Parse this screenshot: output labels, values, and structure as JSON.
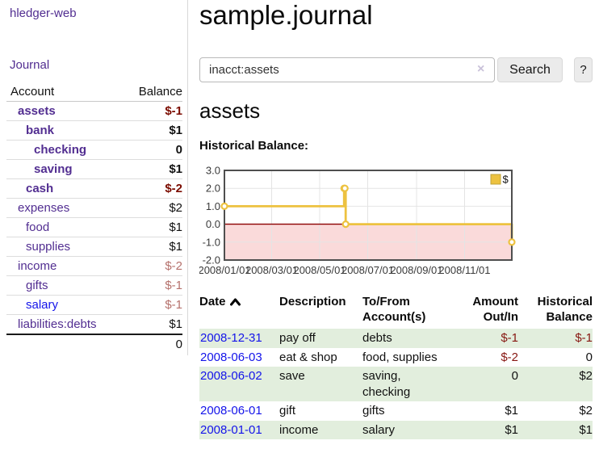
{
  "app": {
    "brand": "hledger-web"
  },
  "sidebar": {
    "journal_link": "Journal",
    "accounts": {
      "headers": {
        "account": "Account",
        "balance": "Balance"
      },
      "rows": [
        {
          "name": "assets",
          "depth": 1,
          "bold": true,
          "balance": "$-1",
          "balance_class": "neg-strong"
        },
        {
          "name": "bank",
          "depth": 2,
          "bold": true,
          "balance": "$1",
          "balance_class": ""
        },
        {
          "name": "checking",
          "depth": 3,
          "bold": true,
          "balance": "0",
          "balance_class": ""
        },
        {
          "name": "saving",
          "depth": 3,
          "bold": true,
          "balance": "$1",
          "balance_class": ""
        },
        {
          "name": "cash",
          "depth": 2,
          "bold": true,
          "balance": "$-2",
          "balance_class": "neg-strong"
        },
        {
          "name": "expenses",
          "depth": 1,
          "bold": false,
          "balance": "$2",
          "balance_class": ""
        },
        {
          "name": "food",
          "depth": 2,
          "bold": false,
          "balance": "$1",
          "balance_class": ""
        },
        {
          "name": "supplies",
          "depth": 2,
          "bold": false,
          "balance": "$1",
          "balance_class": ""
        },
        {
          "name": "income",
          "depth": 1,
          "bold": false,
          "balance": "$-2",
          "balance_class": "neg-dim"
        },
        {
          "name": "gifts",
          "depth": 2,
          "bold": false,
          "balance": "$-1",
          "balance_class": "neg-dim"
        },
        {
          "name": "salary",
          "depth": 2,
          "bold": false,
          "link_color": "blue",
          "balance": "$-1",
          "balance_class": "neg-dim"
        },
        {
          "name": "liabilities:debts",
          "depth": 1,
          "bold": false,
          "balance": "$1",
          "balance_class": ""
        }
      ],
      "total": "0"
    }
  },
  "main": {
    "title": "sample.journal",
    "search": {
      "value": "inacct:assets",
      "clear_icon": "×",
      "button_label": "Search",
      "help_label": "?"
    },
    "account_heading": "assets",
    "chart_heading": "Historical Balance:",
    "register": {
      "headers": {
        "date": "Date",
        "sort_icon": "chevron-up-icon",
        "description": "Description",
        "tofrom_line1": "To/From",
        "tofrom_line2": "Account(s)",
        "amount_line1": "Amount",
        "amount_line2": "Out/In",
        "balance_line1": "Historical",
        "balance_line2": "Balance"
      },
      "rows": [
        {
          "date": "2008-12-31",
          "description": "pay off",
          "accounts": "debts",
          "amount": "$-1",
          "amount_neg": true,
          "balance": "$-1",
          "balance_neg": true,
          "shaded": true
        },
        {
          "date": "2008-06-03",
          "description": "eat & shop",
          "accounts": "food, supplies",
          "amount": "$-2",
          "amount_neg": true,
          "balance": "0",
          "balance_neg": false,
          "shaded": false
        },
        {
          "date": "2008-06-02",
          "description": "save",
          "accounts": "saving,\nchecking",
          "amount": "0",
          "amount_neg": false,
          "balance": "$2",
          "balance_neg": false,
          "shaded": true
        },
        {
          "date": "2008-06-01",
          "description": "gift",
          "accounts": "gifts",
          "amount": "$1",
          "amount_neg": false,
          "balance": "$2",
          "balance_neg": false,
          "shaded": false
        },
        {
          "date": "2008-01-01",
          "description": "income",
          "accounts": "salary",
          "amount": "$1",
          "amount_neg": false,
          "balance": "$1",
          "balance_neg": false,
          "shaded": true
        }
      ]
    }
  },
  "colors": {
    "accent_purple": "#522e91",
    "link_blue": "#1414ea",
    "negative_strong": "#7b0c00",
    "negative_dim": "#b5716c",
    "row_shade_green": "#e2eedd",
    "button_bg": "#ebebeb"
  },
  "chart_data": {
    "type": "line",
    "title": "Historical Balance",
    "step": true,
    "series": [
      {
        "name": "$",
        "color": "#edc240",
        "points": [
          [
            "2008-01-01",
            1
          ],
          [
            "2008-06-01",
            2
          ],
          [
            "2008-06-02",
            2
          ],
          [
            "2008-06-03",
            0
          ],
          [
            "2008-12-31",
            -1
          ]
        ]
      }
    ],
    "x_start": "2008-01-01",
    "x_end": "2008-12-31",
    "xticks": [
      "2008/01/01",
      "2008/03/01",
      "2008/05/01",
      "2008/07/01",
      "2008/09/01",
      "2008/11/01"
    ],
    "yticks": [
      3,
      2,
      1,
      0,
      -1,
      -2
    ],
    "ylim": [
      -2,
      3
    ],
    "legend_position": "top-right",
    "grid": true,
    "colors": {
      "negative_region": "#fadada",
      "zero_line": "#8b0000",
      "grid": "#e4e4e4",
      "border": "#4f4f4f"
    }
  }
}
